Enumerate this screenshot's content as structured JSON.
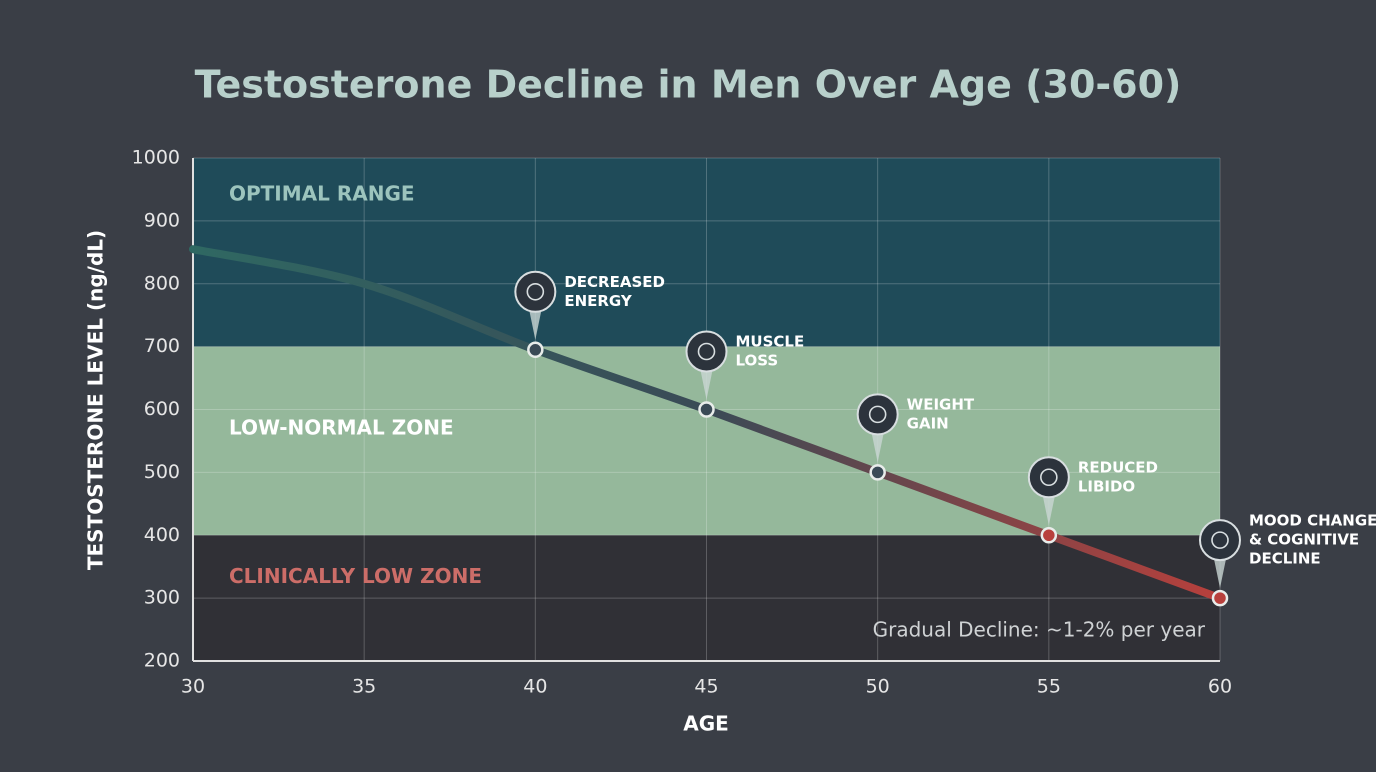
{
  "chart_data": {
    "type": "line",
    "title": "Testosterone Decline in Men Over Age (30-60)",
    "xlabel": "AGE",
    "ylabel": "TESTOSTERONE LEVEL (ng/dL)",
    "x": [
      30,
      35,
      40,
      45,
      50,
      55,
      60
    ],
    "series": [
      {
        "values": [
          855,
          800,
          695,
          600,
          500,
          400,
          300
        ],
        "colors": [
          "#2f6862",
          "#3a4a56",
          "#b8403c"
        ]
      }
    ],
    "xlim": [
      30,
      60
    ],
    "xticks": [
      30,
      35,
      40,
      45,
      50,
      55,
      60
    ],
    "ylim": [
      200,
      1000
    ],
    "yticks": [
      200,
      300,
      400,
      500,
      600,
      700,
      800,
      900,
      1000
    ],
    "grid": true,
    "zones": [
      {
        "label": "OPTIMAL RANGE",
        "from": 700,
        "to": 1000,
        "color": "#1f4b59",
        "label_color": "#9cc4bd"
      },
      {
        "label": "LOW-NORMAL ZONE",
        "from": 400,
        "to": 700,
        "color": "#95b89b",
        "label_color": "#ffffff"
      },
      {
        "label": "CLINICALLY LOW ZONE",
        "from": 200,
        "to": 400,
        "color": "#303036",
        "label_color": "#cc6d68"
      }
    ],
    "annotations": [
      {
        "x": 40,
        "label": [
          "DECREASED",
          "ENERGY"
        ]
      },
      {
        "x": 45,
        "label": [
          "MUSCLE",
          "LOSS"
        ]
      },
      {
        "x": 50,
        "label": [
          "WEIGHT",
          "GAIN"
        ]
      },
      {
        "x": 55,
        "label": [
          "REDUCED",
          "LIBIDO"
        ]
      },
      {
        "x": 60,
        "label": [
          "MOOD CHANGES",
          "& COGNITIVE",
          "DECLINE"
        ]
      }
    ],
    "note": "Gradual Decline: ~1-2% per year"
  }
}
